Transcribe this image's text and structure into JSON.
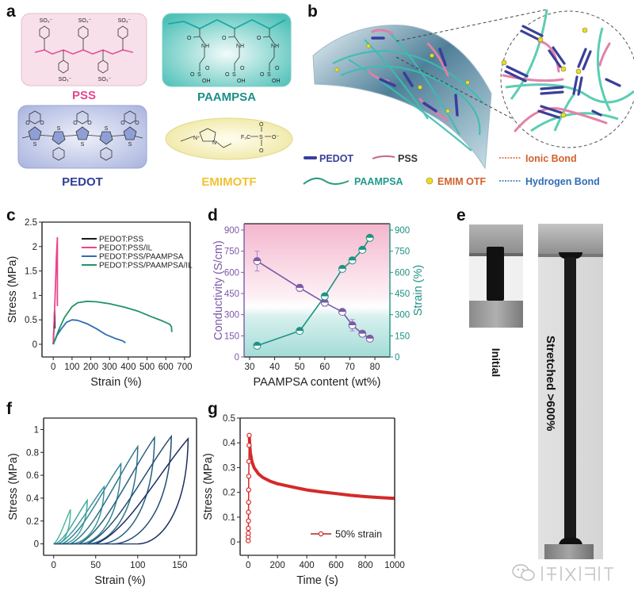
{
  "panels": {
    "a": "a",
    "b": "b",
    "c": "c",
    "d": "d",
    "e": "e",
    "f": "f",
    "g": "g"
  },
  "panel_a": {
    "pss": {
      "label": "PSS",
      "groups": [
        "SO₃⁻",
        "SO₃⁻",
        "SO₃⁻",
        "SO₃⁻",
        "SO₃⁻"
      ]
    },
    "paampsa": {
      "label": "PAAMPSA",
      "atoms": [
        "O",
        "NH",
        "S",
        "O",
        "O",
        "OH"
      ]
    },
    "pedot": {
      "label": "PEDOT",
      "atoms": [
        "S",
        "O"
      ]
    },
    "emimotf": {
      "label": "EMIMOTF",
      "atoms": [
        "N⁺",
        "N",
        "F₃C",
        "S",
        "O",
        "O",
        "O⁻"
      ]
    },
    "colors": {
      "pss": "#e4468e",
      "paampsa": "#1a8f86",
      "pedot": "#2e3f98",
      "emimotf": "#f1c232"
    }
  },
  "panel_b": {
    "legend": [
      {
        "label": "PEDOT",
        "color": "#3a3f9a"
      },
      {
        "label": "PSS",
        "color": "#333333"
      },
      {
        "label": "Ionic Bond",
        "color": "#d2612b"
      },
      {
        "label": "PAAMPSA",
        "color": "#1f9a8a"
      },
      {
        "label": "EMIM OTF",
        "color": "#d2612b"
      },
      {
        "label": "Hydrogen Bond",
        "color": "#2f6db5"
      }
    ]
  },
  "panel_e": {
    "initial": "Initial",
    "stretched": "Stretched >600%"
  },
  "watermark": "学术I科研",
  "chart_data": [
    {
      "panel": "c",
      "type": "line",
      "title": "",
      "xlabel": "Strain (%)",
      "ylabel": "Stress (MPa)",
      "xlim": [
        -60,
        730
      ],
      "ylim": [
        -0.26,
        2.5
      ],
      "xticks": [
        0,
        100,
        200,
        300,
        400,
        500,
        600,
        700
      ],
      "xtick_labels": [
        "0",
        "100",
        "200",
        "300",
        "400",
        "500",
        "600",
        "700"
      ],
      "yticks": [
        0,
        0.5,
        1,
        1.5,
        2,
        2.5
      ],
      "ytick_labels": [
        "0",
        "0.5",
        "1",
        "1.5",
        "2",
        "2.5"
      ],
      "legend_position": "top-right",
      "series": [
        {
          "name": "PEDOT:PSS",
          "color": "#1a1a1a",
          "points": [
            [
              0,
              0
            ],
            [
              4,
              0.35
            ],
            [
              7,
              0.68
            ],
            [
              8,
              0.55
            ],
            [
              8,
              0.32
            ]
          ]
        },
        {
          "name": "PEDOT:PSS/IL",
          "color": "#e8458e",
          "points": [
            [
              0,
              0
            ],
            [
              10,
              1.0
            ],
            [
              17,
              1.8
            ],
            [
              22,
              2.18
            ],
            [
              22,
              0.78
            ]
          ]
        },
        {
          "name": "PEDOT:PSS/PAAMPSA",
          "color": "#2e6db5",
          "points": [
            [
              0,
              0
            ],
            [
              20,
              0.18
            ],
            [
              40,
              0.3
            ],
            [
              70,
              0.45
            ],
            [
              100,
              0.5
            ],
            [
              130,
              0.49
            ],
            [
              180,
              0.42
            ],
            [
              230,
              0.32
            ],
            [
              280,
              0.2
            ],
            [
              330,
              0.12
            ],
            [
              370,
              0.07
            ],
            [
              385,
              0.03
            ]
          ]
        },
        {
          "name": "PEDOT:PSS/PAAMPSA/IL",
          "color": "#23936a",
          "points": [
            [
              0,
              0
            ],
            [
              30,
              0.3
            ],
            [
              60,
              0.55
            ],
            [
              100,
              0.77
            ],
            [
              130,
              0.85
            ],
            [
              180,
              0.88
            ],
            [
              230,
              0.87
            ],
            [
              300,
              0.83
            ],
            [
              380,
              0.76
            ],
            [
              450,
              0.68
            ],
            [
              520,
              0.57
            ],
            [
              580,
              0.48
            ],
            [
              620,
              0.41
            ],
            [
              630,
              0.36
            ],
            [
              632,
              0.25
            ]
          ]
        }
      ]
    },
    {
      "panel": "d",
      "type": "line",
      "title": "",
      "xlabel": "PAAMPSA content (wt%)",
      "ylabel": "Conductivity (S/cm)",
      "y2label": "Strain (%)",
      "xlim": [
        27.8,
        86
      ],
      "ylim": [
        0,
        945
      ],
      "y2lim": [
        0,
        945
      ],
      "xticks": [
        30,
        40,
        50,
        60,
        70,
        80
      ],
      "xtick_labels": [
        "30",
        "40",
        "50",
        "60",
        "70",
        "80"
      ],
      "yticks": [
        0,
        150,
        300,
        450,
        600,
        750,
        900
      ],
      "ytick_labels": [
        "0",
        "150",
        "300",
        "450",
        "600",
        "750",
        "900"
      ],
      "y2tick_labels": [
        "0",
        "150",
        "300",
        "450",
        "600",
        "750",
        "900"
      ],
      "series": [
        {
          "name": "Conductivity",
          "axis": "left",
          "color": "#7b5aa6",
          "x": [
            33,
            50,
            60,
            67,
            71,
            75,
            78
          ],
          "y": [
            680,
            490,
            385,
            320,
            225,
            165,
            130
          ],
          "error": [
            70,
            25,
            25,
            15,
            40,
            15,
            10
          ]
        },
        {
          "name": "Strain",
          "axis": "right",
          "color": "#1e9184",
          "x": [
            33,
            50,
            60,
            67,
            71,
            75,
            78
          ],
          "y": [
            80,
            185,
            430,
            625,
            685,
            760,
            845
          ]
        }
      ]
    },
    {
      "panel": "f",
      "type": "line",
      "title": "",
      "xlabel": "Strain (%)",
      "ylabel": "Stress (MPa)",
      "xlim": [
        -12,
        170
      ],
      "ylim": [
        -0.1,
        1.1
      ],
      "xticks": [
        0,
        50,
        100,
        150
      ],
      "xtick_labels": [
        "0",
        "50",
        "100",
        "150"
      ],
      "yticks": [
        0,
        0.2,
        0.4,
        0.6,
        0.8,
        1
      ],
      "ytick_labels": [
        "0",
        "0.2",
        "0.4",
        "0.6",
        "0.8",
        "1"
      ],
      "loops": [
        {
          "max_strain": 20,
          "peak_stress": 0.3,
          "start": 0,
          "end": 4,
          "color": "#4fb8a3"
        },
        {
          "max_strain": 40,
          "peak_stress": 0.38,
          "start": 2,
          "end": 10,
          "color": "#45a8a0"
        },
        {
          "max_strain": 60,
          "peak_stress": 0.5,
          "start": 5,
          "end": 20,
          "color": "#3c979b"
        },
        {
          "max_strain": 80,
          "peak_stress": 0.7,
          "start": 10,
          "end": 30,
          "color": "#348595"
        },
        {
          "max_strain": 100,
          "peak_stress": 0.85,
          "start": 20,
          "end": 40,
          "color": "#2d738a"
        },
        {
          "max_strain": 120,
          "peak_stress": 0.93,
          "start": 30,
          "end": 55,
          "color": "#27607e"
        },
        {
          "max_strain": 140,
          "peak_stress": 0.94,
          "start": 40,
          "end": 70,
          "color": "#224c70"
        },
        {
          "max_strain": 160,
          "peak_stress": 0.92,
          "start": 50,
          "end": 100,
          "color": "#1d2d5e"
        }
      ]
    },
    {
      "panel": "g",
      "type": "line",
      "title": "",
      "xlabel": "Time (s)",
      "ylabel": "Stress (MPa)",
      "xlim": [
        -55,
        1000
      ],
      "ylim": [
        -0.054,
        0.5
      ],
      "xticks": [
        0,
        200,
        400,
        600,
        800,
        1000
      ],
      "xtick_labels": [
        "0",
        "200",
        "400",
        "600",
        "800",
        "1000"
      ],
      "yticks": [
        0,
        0.1,
        0.2,
        0.3,
        0.4,
        0.5
      ],
      "ytick_labels": [
        "0",
        "0.1",
        "0.2",
        "0.3",
        "0.4",
        "0.5"
      ],
      "legend_position": "bottom-right",
      "series": [
        {
          "name": "50% strain",
          "color": "#d42a2a",
          "loading": [
            [
              0,
              0.005
            ],
            [
              0,
              0.02
            ],
            [
              1,
              0.035
            ],
            [
              1,
              0.055
            ],
            [
              2,
              0.085
            ],
            [
              2,
              0.12
            ],
            [
              3,
              0.16
            ],
            [
              3,
              0.21
            ],
            [
              4,
              0.265
            ],
            [
              5,
              0.325
            ],
            [
              6,
              0.39
            ],
            [
              7,
              0.43
            ]
          ],
          "relaxation": [
            [
              7,
              0.43
            ],
            [
              10,
              0.4
            ],
            [
              15,
              0.36
            ],
            [
              25,
              0.325
            ],
            [
              40,
              0.3
            ],
            [
              70,
              0.275
            ],
            [
              100,
              0.26
            ],
            [
              150,
              0.245
            ],
            [
              200,
              0.235
            ],
            [
              300,
              0.222
            ],
            [
              400,
              0.21
            ],
            [
              500,
              0.202
            ],
            [
              600,
              0.195
            ],
            [
              700,
              0.188
            ],
            [
              800,
              0.183
            ],
            [
              900,
              0.179
            ],
            [
              1000,
              0.176
            ]
          ]
        }
      ]
    }
  ]
}
